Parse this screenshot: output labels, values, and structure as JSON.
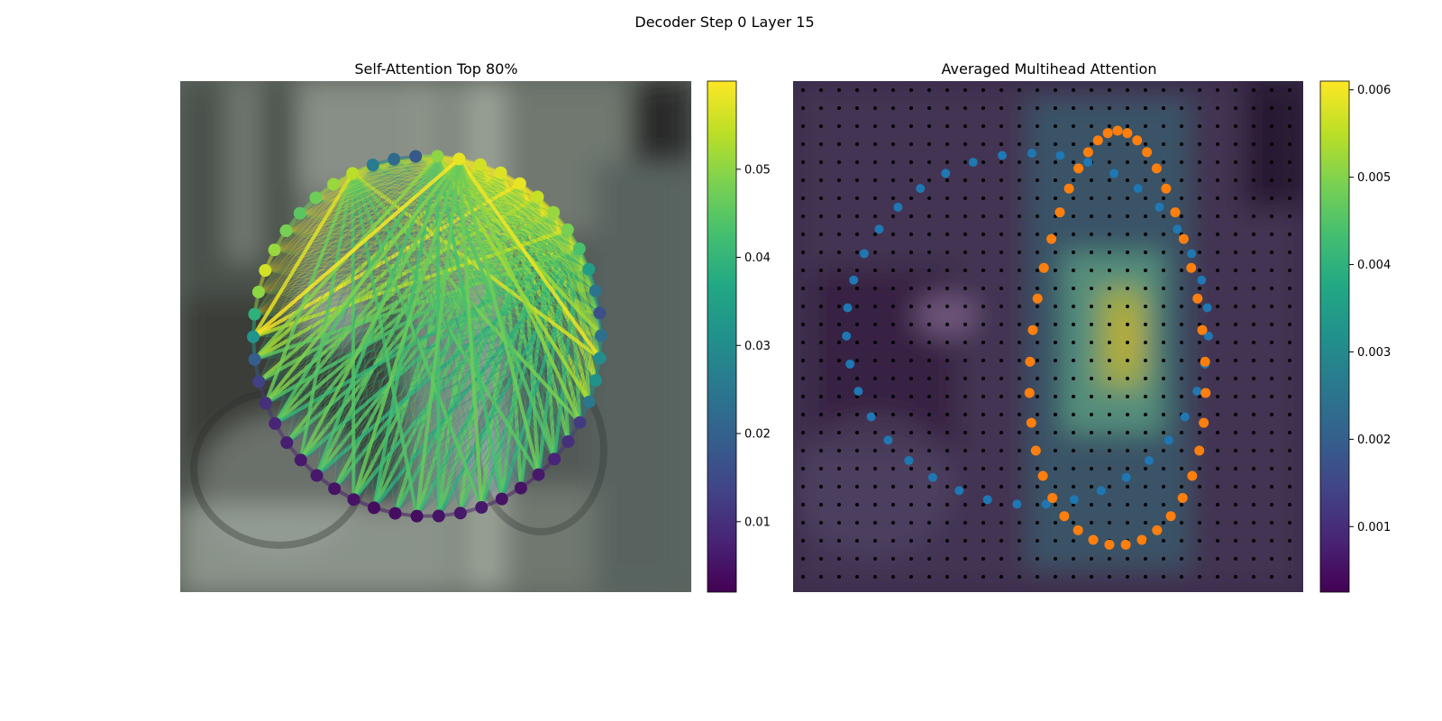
{
  "figure": {
    "title": "Decoder Step 0 Layer 15"
  },
  "chart_data": [
    {
      "type": "scatter",
      "title": "Self-Attention Top 80%",
      "points": {
        "count": 50,
        "attention": [
          0.058,
          0.056,
          0.057,
          0.058,
          0.055,
          0.051,
          0.048,
          0.043,
          0.034,
          0.024,
          0.016,
          0.023,
          0.03,
          0.031,
          0.025,
          0.012,
          0.01,
          0.008,
          0.006,
          0.005,
          0.005,
          0.006,
          0.006,
          0.005,
          0.004,
          0.004,
          0.004,
          0.005,
          0.005,
          0.006,
          0.006,
          0.007,
          0.008,
          0.01,
          0.013,
          0.019,
          0.032,
          0.039,
          0.05,
          0.056,
          0.051,
          0.048,
          0.045,
          0.047,
          0.051,
          0.054,
          0.026,
          0.022,
          0.018,
          0.05
        ]
      },
      "colorbar": {
        "ticks": [
          0.01,
          0.02,
          0.03,
          0.04,
          0.05
        ],
        "range": [
          0.002,
          0.06
        ],
        "colormap": "viridis"
      }
    },
    {
      "type": "heatmap",
      "title": "Averaged Multihead Attention",
      "grid": {
        "rows": 28,
        "cols": 28
      },
      "series": [
        {
          "color": "#1f77b4",
          "count": 39
        },
        {
          "color": "#ff7f0e",
          "count": 41
        }
      ],
      "colorbar": {
        "ticks": [
          0.001,
          0.002,
          0.003,
          0.004,
          0.005,
          0.006
        ],
        "range": [
          0.00025,
          0.0061
        ],
        "colormap": "viridis"
      }
    }
  ]
}
